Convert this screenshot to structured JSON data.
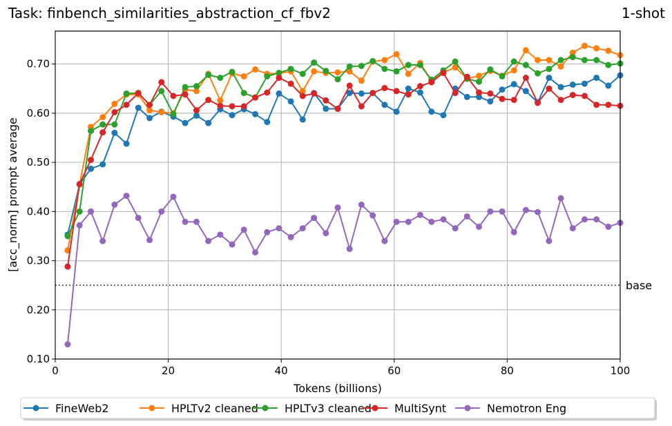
{
  "chart_data": {
    "type": "line",
    "title": "Task: finbench_similarities_abstraction_cf_fbv2",
    "title_right": "1-shot",
    "xlabel": "Tokens (billions)",
    "ylabel": "[acc_norm] prompt average",
    "xlim": [
      0,
      100
    ],
    "ylim": [
      0.1,
      0.767
    ],
    "xticks": [
      0,
      20,
      40,
      60,
      80,
      100
    ],
    "yticks": [
      0.1,
      0.2,
      0.3,
      0.4,
      0.5,
      0.6,
      0.7
    ],
    "grid": true,
    "legend_placement": "bottom-center",
    "baseline": {
      "label": "base",
      "value": 0.25
    },
    "x": [
      2.2,
      4.3,
      6.3,
      8.4,
      10.5,
      12.6,
      14.7,
      16.7,
      18.8,
      20.9,
      23.0,
      25.0,
      27.1,
      29.2,
      31.3,
      33.4,
      35.4,
      37.5,
      39.6,
      41.7,
      43.8,
      45.8,
      47.9,
      50.0,
      52.1,
      54.2,
      56.2,
      58.3,
      60.4,
      62.5,
      64.6,
      66.6,
      68.7,
      70.8,
      72.9,
      75.0,
      77.0,
      79.1,
      81.2,
      83.3,
      85.4,
      87.4,
      89.5,
      91.6,
      93.7,
      95.8,
      97.9,
      100.0
    ],
    "series": [
      {
        "name": "FineWeb2",
        "color": "#1f77b4",
        "values": [
          0.353,
          0.455,
          0.487,
          0.496,
          0.56,
          0.538,
          0.611,
          0.59,
          0.603,
          0.593,
          0.58,
          0.595,
          0.58,
          0.608,
          0.596,
          0.608,
          0.598,
          0.582,
          0.64,
          0.624,
          0.587,
          0.641,
          0.609,
          0.609,
          0.641,
          0.64,
          0.641,
          0.617,
          0.603,
          0.65,
          0.642,
          0.603,
          0.596,
          0.65,
          0.633,
          0.633,
          0.624,
          0.648,
          0.659,
          0.645,
          0.622,
          0.672,
          0.653,
          0.658,
          0.66,
          0.672,
          0.656,
          0.677
        ]
      },
      {
        "name": "HPLTv2 cleaned",
        "color": "#ff7f0e",
        "values": [
          0.321,
          0.455,
          0.572,
          0.592,
          0.619,
          0.638,
          0.638,
          0.606,
          0.602,
          0.6,
          0.648,
          0.645,
          0.68,
          0.626,
          0.681,
          0.675,
          0.689,
          0.68,
          0.681,
          0.685,
          0.645,
          0.685,
          0.682,
          0.683,
          0.685,
          0.666,
          0.705,
          0.708,
          0.72,
          0.68,
          0.702,
          0.665,
          0.683,
          0.693,
          0.67,
          0.676,
          0.686,
          0.676,
          0.687,
          0.728,
          0.708,
          0.708,
          0.695,
          0.723,
          0.737,
          0.732,
          0.727,
          0.718
        ]
      },
      {
        "name": "HPLTv3 cleaned",
        "color": "#2ca02c",
        "values": [
          0.35,
          0.4,
          0.564,
          0.577,
          0.577,
          0.64,
          0.641,
          0.617,
          0.645,
          0.598,
          0.653,
          0.655,
          0.678,
          0.672,
          0.684,
          0.641,
          0.632,
          0.675,
          0.682,
          0.69,
          0.68,
          0.703,
          0.686,
          0.669,
          0.695,
          0.696,
          0.706,
          0.69,
          0.685,
          0.698,
          0.698,
          0.668,
          0.687,
          0.705,
          0.67,
          0.664,
          0.689,
          0.675,
          0.705,
          0.698,
          0.681,
          0.69,
          0.708,
          0.714,
          0.708,
          0.708,
          0.698,
          0.701
        ]
      },
      {
        "name": "MultiSynt",
        "color": "#d62728",
        "values": [
          0.288,
          0.456,
          0.505,
          0.561,
          0.602,
          0.617,
          0.641,
          0.617,
          0.663,
          0.635,
          0.638,
          0.606,
          0.627,
          0.615,
          0.614,
          0.614,
          0.632,
          0.642,
          0.672,
          0.66,
          0.635,
          0.64,
          0.626,
          0.609,
          0.656,
          0.614,
          0.641,
          0.651,
          0.645,
          0.638,
          0.655,
          0.663,
          0.682,
          0.641,
          0.674,
          0.642,
          0.64,
          0.629,
          0.627,
          0.672,
          0.621,
          0.65,
          0.627,
          0.637,
          0.635,
          0.617,
          0.617,
          0.615
        ]
      },
      {
        "name": "Nemotron Eng",
        "color": "#9467bd",
        "values": [
          0.13,
          0.372,
          0.4,
          0.34,
          0.414,
          0.432,
          0.387,
          0.342,
          0.4,
          0.43,
          0.379,
          0.379,
          0.34,
          0.353,
          0.333,
          0.363,
          0.317,
          0.358,
          0.366,
          0.348,
          0.366,
          0.387,
          0.356,
          0.408,
          0.324,
          0.414,
          0.392,
          0.34,
          0.379,
          0.379,
          0.393,
          0.379,
          0.384,
          0.366,
          0.39,
          0.369,
          0.4,
          0.4,
          0.358,
          0.403,
          0.399,
          0.34,
          0.427,
          0.366,
          0.384,
          0.384,
          0.369,
          0.377
        ]
      }
    ]
  }
}
